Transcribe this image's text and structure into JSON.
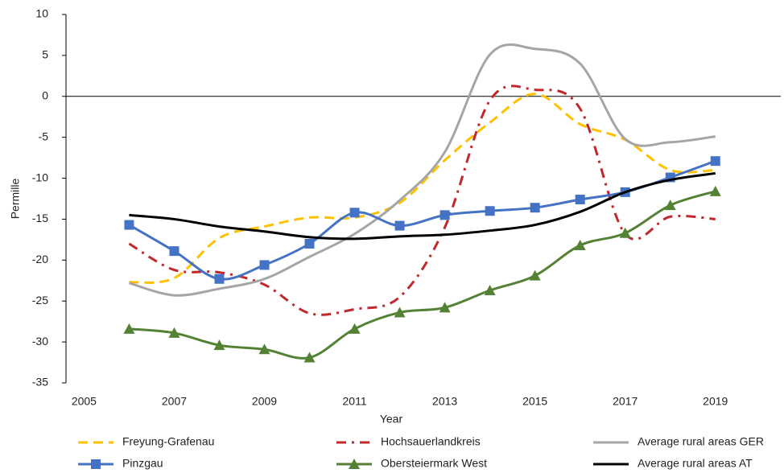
{
  "chart_data": {
    "type": "line",
    "x_label": "Year",
    "y_label": "Permille",
    "x": [
      2006,
      2007,
      2008,
      2009,
      2010,
      2011,
      2012,
      2013,
      2014,
      2015,
      2016,
      2017,
      2018,
      2019
    ],
    "xlim": [
      2004.6,
      2020.45
    ],
    "xticks": [
      2005,
      2007,
      2009,
      2011,
      2013,
      2015,
      2017,
      2019
    ],
    "ylim": [
      -35,
      10
    ],
    "yticks": [
      -35,
      -30,
      -25,
      -20,
      -15,
      -10,
      -5,
      0,
      5,
      10
    ],
    "zero_line": true,
    "legend": "bottom",
    "series": [
      {
        "name": "Freyung-Grafenau",
        "color": "#FFC000",
        "dash": "dashed",
        "marker": "none",
        "values": [
          -22.7,
          -22.2,
          -17.3,
          -15.9,
          -14.8,
          -14.8,
          -13.0,
          -7.8,
          -3.2,
          0.3,
          -3.4,
          -5.3,
          -9.0,
          -9.0
        ]
      },
      {
        "name": "Hochsauerlandkreis",
        "color": "#C0282D",
        "dash": "dashdot",
        "marker": "none",
        "values": [
          -18.0,
          -21.2,
          -21.5,
          -23.0,
          -26.5,
          -26.0,
          -24.5,
          -16.0,
          -0.5,
          0.8,
          -1.5,
          -16.8,
          -14.7,
          -15.0
        ]
      },
      {
        "name": "Average rural areas GER",
        "color": "#A5A5A5",
        "dash": "solid",
        "marker": "none",
        "values": [
          -22.8,
          -24.3,
          -23.5,
          -22.3,
          -19.6,
          -16.8,
          -12.7,
          -6.8,
          5.1,
          5.8,
          4.0,
          -5.2,
          -5.6,
          -4.9
        ]
      },
      {
        "name": "Pinzgau",
        "color": "#4472C4",
        "dash": "solid",
        "marker": "square",
        "values": [
          -15.7,
          -18.9,
          -22.3,
          -20.6,
          -18.0,
          -14.2,
          -15.8,
          -14.5,
          -14.0,
          -13.6,
          -12.6,
          -11.7,
          -9.9,
          -7.9
        ]
      },
      {
        "name": "Obersteiermark West",
        "color": "#548235",
        "dash": "solid",
        "marker": "triangle",
        "values": [
          -28.4,
          -28.9,
          -30.4,
          -30.9,
          -31.9,
          -28.4,
          -26.4,
          -25.8,
          -23.7,
          -21.9,
          -18.2,
          -16.7,
          -13.3,
          -11.6
        ]
      },
      {
        "name": "Average rural areas AT",
        "color": "#000000",
        "dash": "solid",
        "marker": "none",
        "values": [
          -14.5,
          -15.0,
          -15.9,
          -16.5,
          -17.2,
          -17.4,
          -17.1,
          -16.9,
          -16.4,
          -15.7,
          -14.1,
          -11.7,
          -10.2,
          -9.4
        ]
      }
    ]
  }
}
